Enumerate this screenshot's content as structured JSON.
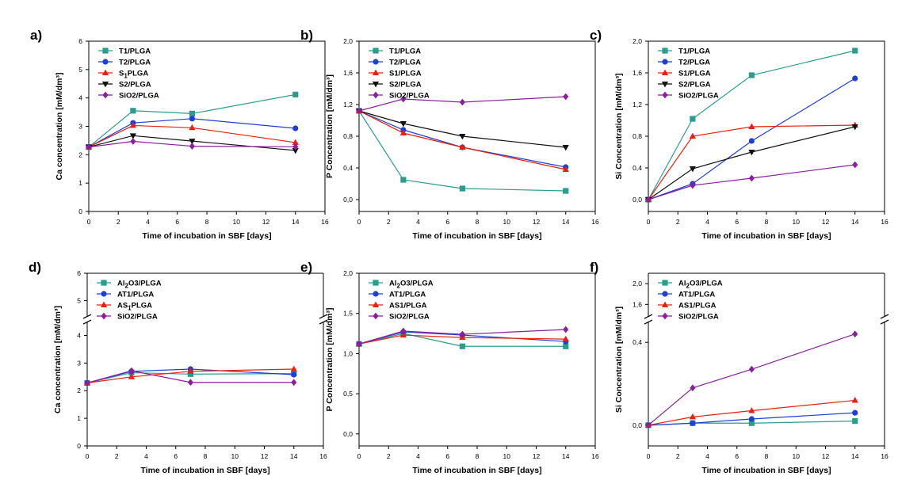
{
  "colors": {
    "T1": "#2a9d8f",
    "T2": "#1f3fd6",
    "S1": "#e8200c",
    "S2": "#111111",
    "SiO2": "#8a1f9e",
    "axis": "#000000"
  },
  "xlabel": "Time of incubation in SBF [days]",
  "chart_data": [
    {
      "type": "line",
      "panel_label": "a)",
      "title": "",
      "xlabel": "Time of incubation in SBF [days]",
      "ylabel": "Ca concentration [mM/dm³]",
      "xlim": [
        0,
        16
      ],
      "ylim": [
        0,
        6
      ],
      "xticks": [
        0,
        2,
        4,
        6,
        8,
        10,
        12,
        14,
        16
      ],
      "xtick_labels": [
        "0",
        "2",
        "4",
        "6",
        "8",
        "10",
        "12",
        "14",
        "16"
      ],
      "yticks": [
        0,
        1,
        2,
        3,
        4,
        5,
        6
      ],
      "ytick_labels": [
        "0",
        "1",
        "2",
        "3",
        "4",
        "5",
        "6"
      ],
      "legend_position": "top-left",
      "series": [
        {
          "name": "T1/PLGA",
          "color": "#2a9d8f",
          "marker": "square",
          "x": [
            0,
            3,
            7,
            14
          ],
          "y": [
            2.27,
            3.55,
            3.45,
            4.12
          ]
        },
        {
          "name": "T2/PLGA",
          "color": "#1f3fd6",
          "marker": "circle",
          "x": [
            0,
            3,
            7,
            14
          ],
          "y": [
            2.27,
            3.12,
            3.27,
            2.93
          ]
        },
        {
          "name": "S1PLGA",
          "color": "#e8200c",
          "marker": "triangle-up",
          "x": [
            0,
            3,
            7,
            14
          ],
          "y": [
            2.27,
            3.03,
            2.95,
            2.43
          ]
        },
        {
          "name": "S2/PLGA",
          "color": "#111111",
          "marker": "triangle-down",
          "x": [
            0,
            3,
            7,
            14
          ],
          "y": [
            2.27,
            2.67,
            2.48,
            2.15
          ]
        },
        {
          "name": "SiO2/PLGA",
          "color": "#8a1f9e",
          "marker": "diamond",
          "x": [
            0,
            3,
            7,
            14
          ],
          "y": [
            2.27,
            2.47,
            2.3,
            2.28
          ]
        }
      ]
    },
    {
      "type": "line",
      "panel_label": "b)",
      "title": "",
      "xlabel": "Time of incubation in SBF [days]",
      "ylabel": "P Concentration [mM/dm³]",
      "xlim": [
        0,
        16
      ],
      "ylim": [
        -0.15,
        2.0
      ],
      "xticks": [
        0,
        2,
        4,
        6,
        8,
        10,
        12,
        14,
        16
      ],
      "xtick_labels": [
        "0",
        "2",
        "4",
        "6",
        "8",
        "10",
        "12",
        "14",
        "16"
      ],
      "yticks": [
        0,
        0.4,
        0.8,
        1.2,
        1.6,
        2.0
      ],
      "ytick_labels": [
        "0,0",
        "0,4",
        "0,8",
        "1,2",
        "1,6",
        "2,0"
      ],
      "legend_position": "top-left",
      "series": [
        {
          "name": "T1/PLGA",
          "color": "#2a9d8f",
          "marker": "square",
          "x": [
            0,
            3,
            7,
            14
          ],
          "y": [
            1.12,
            0.25,
            0.14,
            0.11
          ]
        },
        {
          "name": "T2/PLGA",
          "color": "#1f3fd6",
          "marker": "circle",
          "x": [
            0,
            3,
            7,
            14
          ],
          "y": [
            1.12,
            0.88,
            0.66,
            0.41
          ]
        },
        {
          "name": "S1/PLGA",
          "color": "#e8200c",
          "marker": "triangle-up",
          "x": [
            0,
            3,
            7,
            14
          ],
          "y": [
            1.12,
            0.84,
            0.66,
            0.38
          ]
        },
        {
          "name": "S2/PLGA",
          "color": "#111111",
          "marker": "triangle-down",
          "x": [
            0,
            3,
            7,
            14
          ],
          "y": [
            1.12,
            0.96,
            0.8,
            0.66
          ]
        },
        {
          "name": "SiO2/PLGA",
          "color": "#8a1f9e",
          "marker": "diamond",
          "x": [
            0,
            3,
            7,
            14
          ],
          "y": [
            1.12,
            1.27,
            1.23,
            1.3
          ]
        }
      ]
    },
    {
      "type": "line",
      "panel_label": "c)",
      "title": "",
      "xlabel": "Time of incubation in SBF [days]",
      "ylabel": "Si Concentration [mM/dm³]",
      "xlim": [
        0,
        16
      ],
      "ylim": [
        -0.15,
        2.0
      ],
      "xticks": [
        0,
        2,
        4,
        6,
        8,
        10,
        12,
        14,
        16
      ],
      "xtick_labels": [
        "0",
        "2",
        "4",
        "6",
        "8",
        "10",
        "12",
        "14",
        "16"
      ],
      "yticks": [
        0,
        0.4,
        0.8,
        1.2,
        1.6,
        2.0
      ],
      "ytick_labels": [
        "0,0",
        "0,4",
        "0,8",
        "1,2",
        "1,6",
        "2,0"
      ],
      "legend_position": "top-left",
      "series": [
        {
          "name": "T1/PLGA",
          "color": "#2a9d8f",
          "marker": "square",
          "x": [
            0,
            3,
            7,
            14
          ],
          "y": [
            0.0,
            1.02,
            1.57,
            1.88
          ]
        },
        {
          "name": "T2/PLGA",
          "color": "#1f3fd6",
          "marker": "circle",
          "x": [
            0,
            3,
            7,
            14
          ],
          "y": [
            0.0,
            0.2,
            0.74,
            1.53
          ]
        },
        {
          "name": "S1/PLGA",
          "color": "#e8200c",
          "marker": "triangle-up",
          "x": [
            0,
            3,
            7,
            14
          ],
          "y": [
            0.0,
            0.8,
            0.92,
            0.94
          ]
        },
        {
          "name": "S2/PLGA",
          "color": "#111111",
          "marker": "triangle-down",
          "x": [
            0,
            3,
            7,
            14
          ],
          "y": [
            0.0,
            0.39,
            0.6,
            0.92
          ]
        },
        {
          "name": "SiO2/PLGA",
          "color": "#8a1f9e",
          "marker": "diamond",
          "x": [
            0,
            3,
            7,
            14
          ],
          "y": [
            0.0,
            0.18,
            0.27,
            0.44
          ]
        }
      ]
    },
    {
      "type": "line",
      "panel_label": "d)",
      "title": "",
      "xlabel": "Time of incubation in SBF [days]",
      "ylabel": "Ca concentration [mM/dm³]",
      "xlim": [
        0,
        16
      ],
      "ylim": [
        0,
        6
      ],
      "axis_break": {
        "at": 4.5,
        "upper_ticks": [
          5,
          6
        ]
      },
      "xticks": [
        0,
        2,
        4,
        6,
        8,
        10,
        12,
        14,
        16
      ],
      "xtick_labels": [
        "0",
        "2",
        "4",
        "6",
        "8",
        "10",
        "12",
        "14",
        "16"
      ],
      "yticks": [
        0,
        1,
        2,
        3,
        4,
        5,
        6
      ],
      "ytick_labels": [
        "0",
        "1",
        "2",
        "3",
        "4",
        "5",
        "6"
      ],
      "legend_position": "top-left",
      "series": [
        {
          "name": "Al2O3/PLGA",
          "color": "#2a9d8f",
          "marker": "square",
          "x": [
            0,
            3,
            7,
            14
          ],
          "y": [
            2.28,
            2.65,
            2.6,
            2.62
          ]
        },
        {
          "name": "AT1/PLGA",
          "color": "#1f3fd6",
          "marker": "circle",
          "x": [
            0,
            3,
            7,
            14
          ],
          "y": [
            2.28,
            2.7,
            2.78,
            2.58
          ]
        },
        {
          "name": "AS1PLGA",
          "color": "#e8200c",
          "marker": "triangle-up",
          "x": [
            0,
            3,
            7,
            14
          ],
          "y": [
            2.28,
            2.5,
            2.7,
            2.78
          ]
        },
        {
          "name": "SiO2/PLGA",
          "color": "#8a1f9e",
          "marker": "diamond",
          "x": [
            0,
            3,
            7,
            14
          ],
          "y": [
            2.28,
            2.72,
            2.3,
            2.3
          ]
        }
      ]
    },
    {
      "type": "line",
      "panel_label": "e)",
      "title": "",
      "xlabel": "Time of incubation in SBF [days]",
      "ylabel": "P Concentration [mM/dm³]",
      "xlim": [
        0,
        16
      ],
      "ylim": [
        -0.15,
        2.0
      ],
      "xticks": [
        0,
        2,
        4,
        6,
        8,
        10,
        12,
        14,
        16
      ],
      "xtick_labels": [
        "0",
        "2",
        "4",
        "6",
        "8",
        "10",
        "12",
        "14",
        "16"
      ],
      "yticks": [
        0,
        0.5,
        1.0,
        1.5,
        2.0
      ],
      "ytick_labels": [
        "0,0",
        "0,5",
        "1,0",
        "1,5",
        "2,0"
      ],
      "legend_position": "top-left",
      "series": [
        {
          "name": "Al2O3/PLGA",
          "color": "#2a9d8f",
          "marker": "square",
          "x": [
            0,
            3,
            7,
            14
          ],
          "y": [
            1.12,
            1.25,
            1.09,
            1.09
          ]
        },
        {
          "name": "AT1/PLGA",
          "color": "#1f3fd6",
          "marker": "circle",
          "x": [
            0,
            3,
            7,
            14
          ],
          "y": [
            1.12,
            1.27,
            1.23,
            1.15
          ]
        },
        {
          "name": "AS1/PLGA",
          "color": "#e8200c",
          "marker": "triangle-up",
          "x": [
            0,
            3,
            7,
            14
          ],
          "y": [
            1.12,
            1.23,
            1.2,
            1.18
          ]
        },
        {
          "name": "SiO2/PLGA",
          "color": "#8a1f9e",
          "marker": "diamond",
          "x": [
            0,
            3,
            7,
            14
          ],
          "y": [
            1.12,
            1.28,
            1.24,
            1.3
          ]
        }
      ]
    },
    {
      "type": "line",
      "panel_label": "f)",
      "title": "",
      "xlabel": "Time of incubation in SBF [days]",
      "ylabel": "Si Concentration [mM/dm³]",
      "xlim": [
        0,
        16
      ],
      "ylim": [
        -0.1,
        2.2
      ],
      "axis_break": {
        "at": 0.5,
        "upper_ticks": [
          1.6,
          2.0
        ]
      },
      "xticks": [
        0,
        2,
        4,
        6,
        8,
        10,
        12,
        14,
        16
      ],
      "xtick_labels": [
        "0",
        "2",
        "4",
        "6",
        "8",
        "10",
        "12",
        "14",
        "16"
      ],
      "yticks": [
        0,
        0.4,
        1.6,
        2.0
      ],
      "ytick_labels": [
        "0,0",
        "0,4",
        "1,6",
        "2,0"
      ],
      "legend_position": "top-left",
      "series": [
        {
          "name": "Al2O3/PLGA",
          "color": "#2a9d8f",
          "marker": "square",
          "x": [
            0,
            3,
            7,
            14
          ],
          "y": [
            0.0,
            0.01,
            0.01,
            0.02
          ]
        },
        {
          "name": "AT1/PLGA",
          "color": "#1f3fd6",
          "marker": "circle",
          "x": [
            0,
            3,
            7,
            14
          ],
          "y": [
            0.0,
            0.01,
            0.03,
            0.06
          ]
        },
        {
          "name": "AS1/PLGA",
          "color": "#e8200c",
          "marker": "triangle-up",
          "x": [
            0,
            3,
            7,
            14
          ],
          "y": [
            0.0,
            0.04,
            0.07,
            0.12
          ]
        },
        {
          "name": "SiO2/PLGA",
          "color": "#8a1f9e",
          "marker": "diamond",
          "x": [
            0,
            3,
            7,
            14
          ],
          "y": [
            0.0,
            0.18,
            0.27,
            0.44
          ]
        }
      ]
    }
  ]
}
